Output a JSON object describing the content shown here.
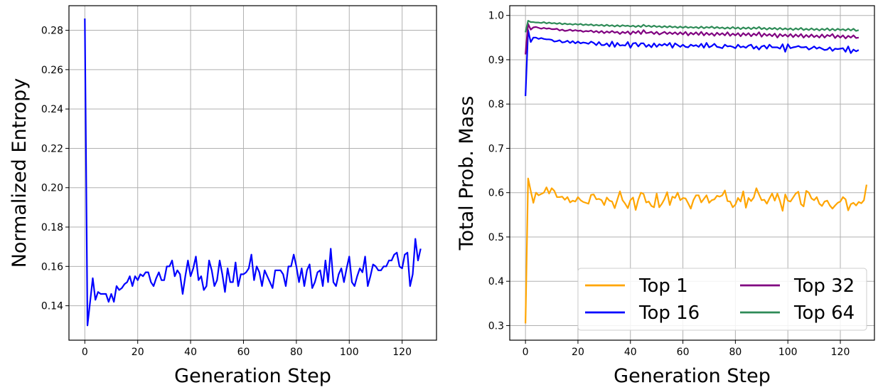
{
  "chart_data": [
    {
      "type": "line",
      "xlabel": "Generation Step",
      "ylabel": "Normalized Entropy",
      "xlim": [
        -6,
        133
      ],
      "ylim": [
        0.1225,
        0.2925
      ],
      "xticks": [
        0,
        20,
        40,
        60,
        80,
        100,
        120
      ],
      "yticks": [
        0.14,
        0.16,
        0.18,
        0.2,
        0.22,
        0.24,
        0.26,
        0.28
      ],
      "ytick_format": 2,
      "grid": true,
      "series": [
        {
          "color": "#0000ff",
          "x_start": 0,
          "x_step": 1,
          "values": [
            0.286,
            0.13,
            0.142,
            0.154,
            0.143,
            0.147,
            0.146,
            0.146,
            0.146,
            0.142,
            0.146,
            0.142,
            0.15,
            0.148,
            0.149,
            0.151,
            0.152,
            0.155,
            0.15,
            0.155,
            0.153,
            0.156,
            0.155,
            0.157,
            0.157,
            0.152,
            0.15,
            0.154,
            0.157,
            0.153,
            0.153,
            0.16,
            0.16,
            0.163,
            0.155,
            0.158,
            0.156,
            0.146,
            0.155,
            0.163,
            0.155,
            0.159,
            0.165,
            0.153,
            0.155,
            0.148,
            0.15,
            0.163,
            0.158,
            0.15,
            0.153,
            0.163,
            0.156,
            0.147,
            0.159,
            0.152,
            0.152,
            0.162,
            0.15,
            0.156,
            0.156,
            0.157,
            0.159,
            0.166,
            0.153,
            0.16,
            0.157,
            0.15,
            0.158,
            0.155,
            0.152,
            0.149,
            0.158,
            0.158,
            0.158,
            0.156,
            0.15,
            0.16,
            0.16,
            0.166,
            0.16,
            0.152,
            0.159,
            0.15,
            0.158,
            0.161,
            0.149,
            0.152,
            0.157,
            0.158,
            0.15,
            0.163,
            0.152,
            0.169,
            0.152,
            0.15,
            0.156,
            0.159,
            0.152,
            0.159,
            0.165,
            0.152,
            0.15,
            0.155,
            0.159,
            0.157,
            0.165,
            0.15,
            0.155,
            0.161,
            0.16,
            0.158,
            0.158,
            0.16,
            0.16,
            0.163,
            0.163,
            0.166,
            0.167,
            0.16,
            0.159,
            0.166,
            0.167,
            0.15,
            0.156,
            0.174,
            0.163,
            0.169
          ]
        }
      ]
    },
    {
      "type": "line",
      "xlabel": "Generation Step",
      "ylabel": "Total Prob. Mass",
      "xlim": [
        -6,
        133
      ],
      "ylim": [
        0.267,
        1.022
      ],
      "xticks": [
        0,
        20,
        40,
        60,
        80,
        100,
        120
      ],
      "yticks": [
        0.3,
        0.4,
        0.5,
        0.6,
        0.7,
        0.8,
        0.9,
        1.0
      ],
      "ytick_format": 1,
      "grid": true,
      "legend": {
        "position": "lower-right",
        "columns": 2
      },
      "series": [
        {
          "name": "Top 1",
          "color": "#ffa500",
          "x_start": 0,
          "x_step": 1,
          "values": [
            0.305,
            0.632,
            0.604,
            0.577,
            0.6,
            0.594,
            0.597,
            0.6,
            0.612,
            0.598,
            0.61,
            0.604,
            0.59,
            0.59,
            0.591,
            0.584,
            0.59,
            0.578,
            0.582,
            0.58,
            0.59,
            0.583,
            0.579,
            0.577,
            0.575,
            0.595,
            0.596,
            0.585,
            0.586,
            0.583,
            0.572,
            0.589,
            0.582,
            0.58,
            0.565,
            0.584,
            0.603,
            0.583,
            0.575,
            0.565,
            0.583,
            0.589,
            0.561,
            0.584,
            0.6,
            0.597,
            0.578,
            0.58,
            0.57,
            0.567,
            0.598,
            0.567,
            0.575,
            0.586,
            0.601,
            0.572,
            0.591,
            0.588,
            0.6,
            0.583,
            0.588,
            0.587,
            0.576,
            0.564,
            0.583,
            0.594,
            0.594,
            0.578,
            0.586,
            0.594,
            0.577,
            0.583,
            0.585,
            0.593,
            0.591,
            0.594,
            0.605,
            0.581,
            0.58,
            0.567,
            0.573,
            0.588,
            0.58,
            0.603,
            0.566,
            0.588,
            0.581,
            0.589,
            0.61,
            0.596,
            0.583,
            0.584,
            0.575,
            0.587,
            0.598,
            0.582,
            0.598,
            0.581,
            0.559,
            0.596,
            0.582,
            0.58,
            0.589,
            0.598,
            0.602,
            0.574,
            0.569,
            0.604,
            0.6,
            0.587,
            0.583,
            0.59,
            0.575,
            0.57,
            0.58,
            0.582,
            0.571,
            0.564,
            0.571,
            0.577,
            0.58,
            0.59,
            0.585,
            0.56,
            0.574,
            0.577,
            0.571,
            0.579,
            0.576,
            0.583,
            0.618
          ]
        },
        {
          "name": "Top 16",
          "color": "#0000ff",
          "x_start": 0,
          "x_step": 1,
          "values": [
            0.818,
            0.967,
            0.94,
            0.95,
            0.95,
            0.947,
            0.949,
            0.947,
            0.946,
            0.946,
            0.945,
            0.941,
            0.942,
            0.944,
            0.939,
            0.94,
            0.943,
            0.938,
            0.942,
            0.937,
            0.941,
            0.937,
            0.939,
            0.938,
            0.936,
            0.941,
            0.938,
            0.933,
            0.94,
            0.933,
            0.933,
            0.937,
            0.93,
            0.941,
            0.929,
            0.938,
            0.932,
            0.933,
            0.932,
            0.94,
            0.927,
            0.937,
            0.938,
            0.93,
            0.937,
            0.937,
            0.929,
            0.934,
            0.928,
            0.937,
            0.929,
            0.935,
            0.932,
            0.936,
            0.932,
            0.938,
            0.927,
            0.937,
            0.933,
            0.929,
            0.934,
            0.929,
            0.928,
            0.934,
            0.931,
            0.933,
            0.929,
            0.936,
            0.927,
            0.938,
            0.928,
            0.931,
            0.936,
            0.929,
            0.928,
            0.926,
            0.934,
            0.93,
            0.931,
            0.929,
            0.926,
            0.934,
            0.928,
            0.93,
            0.927,
            0.932,
            0.934,
            0.925,
            0.93,
            0.923,
            0.93,
            0.932,
            0.925,
            0.934,
            0.928,
            0.928,
            0.928,
            0.925,
            0.935,
            0.918,
            0.935,
            0.926,
            0.928,
            0.929,
            0.931,
            0.928,
            0.928,
            0.929,
            0.923,
            0.926,
            0.93,
            0.925,
            0.928,
            0.925,
            0.922,
            0.923,
            0.928,
            0.92,
            0.925,
            0.924,
            0.925,
            0.926,
            0.918,
            0.93,
            0.915,
            0.923,
            0.919,
            0.922
          ]
        },
        {
          "name": "Top 32",
          "color": "#800080",
          "x_start": 0,
          "x_step": 1,
          "values": [
            0.912,
            0.981,
            0.968,
            0.973,
            0.974,
            0.972,
            0.97,
            0.972,
            0.97,
            0.971,
            0.969,
            0.969,
            0.97,
            0.966,
            0.968,
            0.965,
            0.966,
            0.968,
            0.965,
            0.967,
            0.965,
            0.966,
            0.963,
            0.965,
            0.964,
            0.966,
            0.962,
            0.965,
            0.961,
            0.965,
            0.96,
            0.964,
            0.961,
            0.965,
            0.961,
            0.963,
            0.958,
            0.963,
            0.96,
            0.964,
            0.957,
            0.964,
            0.96,
            0.965,
            0.958,
            0.967,
            0.96,
            0.961,
            0.963,
            0.958,
            0.963,
            0.957,
            0.96,
            0.963,
            0.958,
            0.962,
            0.958,
            0.962,
            0.957,
            0.962,
            0.957,
            0.963,
            0.955,
            0.961,
            0.957,
            0.962,
            0.956,
            0.963,
            0.955,
            0.961,
            0.956,
            0.96,
            0.954,
            0.961,
            0.956,
            0.96,
            0.955,
            0.962,
            0.954,
            0.959,
            0.955,
            0.96,
            0.953,
            0.96,
            0.955,
            0.96,
            0.953,
            0.959,
            0.955,
            0.962,
            0.952,
            0.959,
            0.954,
            0.958,
            0.953,
            0.959,
            0.95,
            0.958,
            0.953,
            0.957,
            0.952,
            0.958,
            0.951,
            0.957,
            0.952,
            0.958,
            0.95,
            0.956,
            0.951,
            0.957,
            0.951,
            0.955,
            0.95,
            0.957,
            0.95,
            0.956,
            0.953,
            0.958,
            0.949,
            0.955,
            0.95,
            0.955,
            0.948,
            0.954,
            0.95,
            0.955,
            0.949,
            0.95
          ]
        },
        {
          "name": "Top 64",
          "color": "#2e8b57",
          "x_start": 0,
          "x_step": 1,
          "values": [
            0.962,
            0.988,
            0.985,
            0.985,
            0.984,
            0.984,
            0.983,
            0.985,
            0.982,
            0.984,
            0.982,
            0.983,
            0.981,
            0.983,
            0.98,
            0.982,
            0.98,
            0.981,
            0.979,
            0.981,
            0.979,
            0.981,
            0.978,
            0.98,
            0.978,
            0.98,
            0.977,
            0.979,
            0.977,
            0.979,
            0.976,
            0.979,
            0.976,
            0.978,
            0.975,
            0.978,
            0.975,
            0.978,
            0.976,
            0.977,
            0.975,
            0.977,
            0.974,
            0.977,
            0.974,
            0.979,
            0.975,
            0.977,
            0.974,
            0.977,
            0.974,
            0.976,
            0.973,
            0.976,
            0.973,
            0.976,
            0.973,
            0.975,
            0.972,
            0.975,
            0.972,
            0.975,
            0.972,
            0.974,
            0.972,
            0.974,
            0.971,
            0.975,
            0.971,
            0.974,
            0.972,
            0.975,
            0.971,
            0.974,
            0.971,
            0.973,
            0.97,
            0.973,
            0.97,
            0.974,
            0.97,
            0.973,
            0.969,
            0.973,
            0.97,
            0.973,
            0.969,
            0.973,
            0.97,
            0.974,
            0.969,
            0.972,
            0.968,
            0.972,
            0.969,
            0.972,
            0.968,
            0.972,
            0.968,
            0.971,
            0.968,
            0.971,
            0.967,
            0.971,
            0.968,
            0.972,
            0.967,
            0.97,
            0.967,
            0.971,
            0.967,
            0.97,
            0.966,
            0.97,
            0.967,
            0.971,
            0.966,
            0.97,
            0.966,
            0.97,
            0.967,
            0.969,
            0.966,
            0.97,
            0.966,
            0.97,
            0.965,
            0.967
          ]
        }
      ]
    }
  ]
}
